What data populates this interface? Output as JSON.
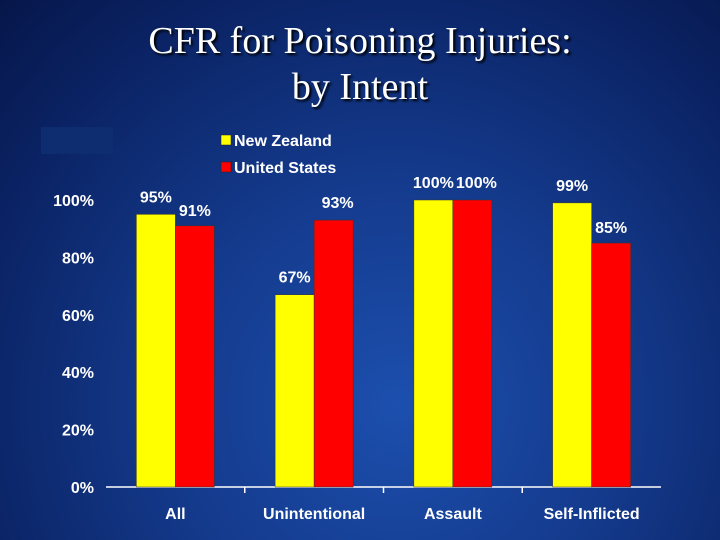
{
  "title": {
    "line1": "CFR for Poisoning Injuries:",
    "line2": "by Intent"
  },
  "chart_data": {
    "type": "bar",
    "title": "CFR for Poisoning Injuries: by Intent",
    "xlabel": "",
    "ylabel": "",
    "ylim": [
      0,
      100
    ],
    "yticks": [
      "0%",
      "20%",
      "40%",
      "60%",
      "80%",
      "100%"
    ],
    "categories": [
      "All",
      "Unintentional",
      "Assault",
      "Self-Inflicted"
    ],
    "series": [
      {
        "name": "New Zealand",
        "color": "#ffff00",
        "values": [
          95,
          67,
          100,
          99
        ],
        "labels": [
          "95%",
          "67%",
          "100%",
          "99%"
        ]
      },
      {
        "name": "United States",
        "color": "#ff0000",
        "values": [
          91,
          93,
          100,
          85
        ],
        "labels": [
          "91%",
          "93%",
          "100%",
          "85%"
        ]
      }
    ],
    "legend": "top-center"
  }
}
